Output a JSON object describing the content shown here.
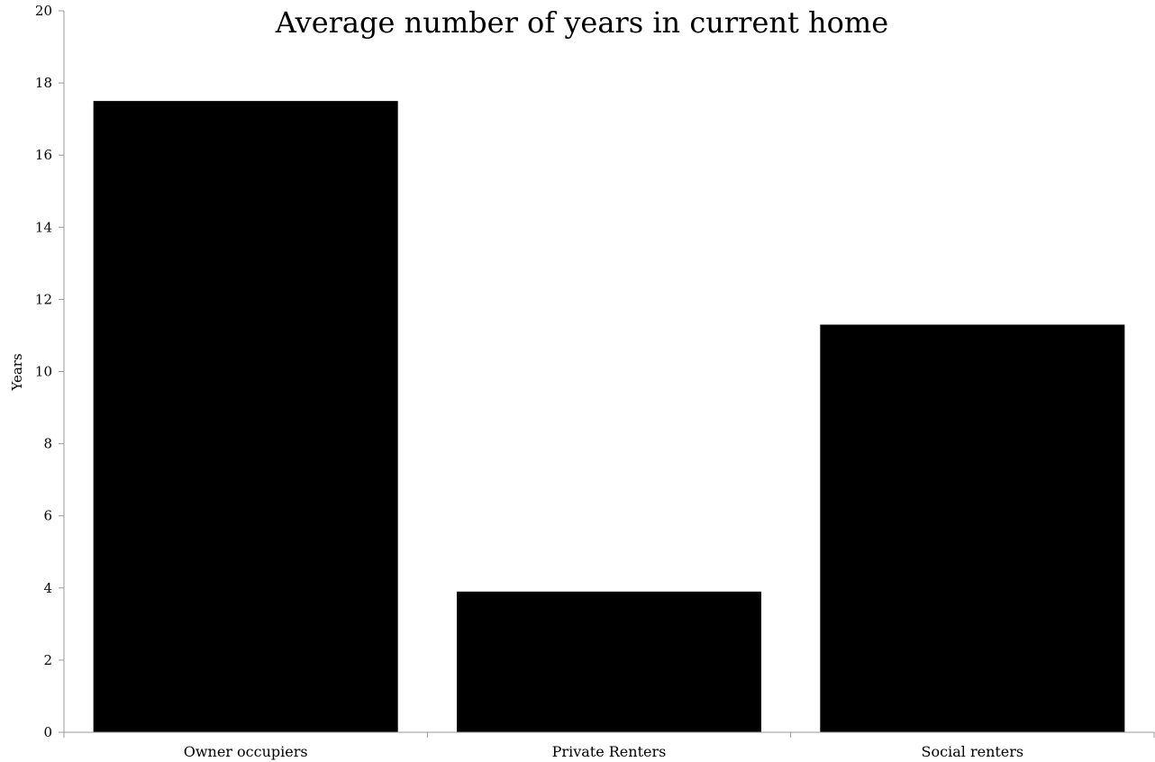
{
  "chart_data": {
    "type": "bar",
    "title": "Average number of years in current home",
    "xlabel": "",
    "ylabel": "Years",
    "categories": [
      "Owner occupiers",
      "Private Renters",
      "Social renters"
    ],
    "values": [
      17.5,
      3.9,
      11.3
    ],
    "ylim": [
      0,
      20
    ],
    "yticks": [
      "0",
      "2",
      "4",
      "6",
      "8",
      "10",
      "12",
      "14",
      "16",
      "18",
      "20"
    ],
    "grid": false,
    "legend": "none",
    "colors": {
      "bar": "#000000",
      "axis": "#9a9a9a",
      "text": "#000000",
      "background": "#ffffff"
    }
  }
}
